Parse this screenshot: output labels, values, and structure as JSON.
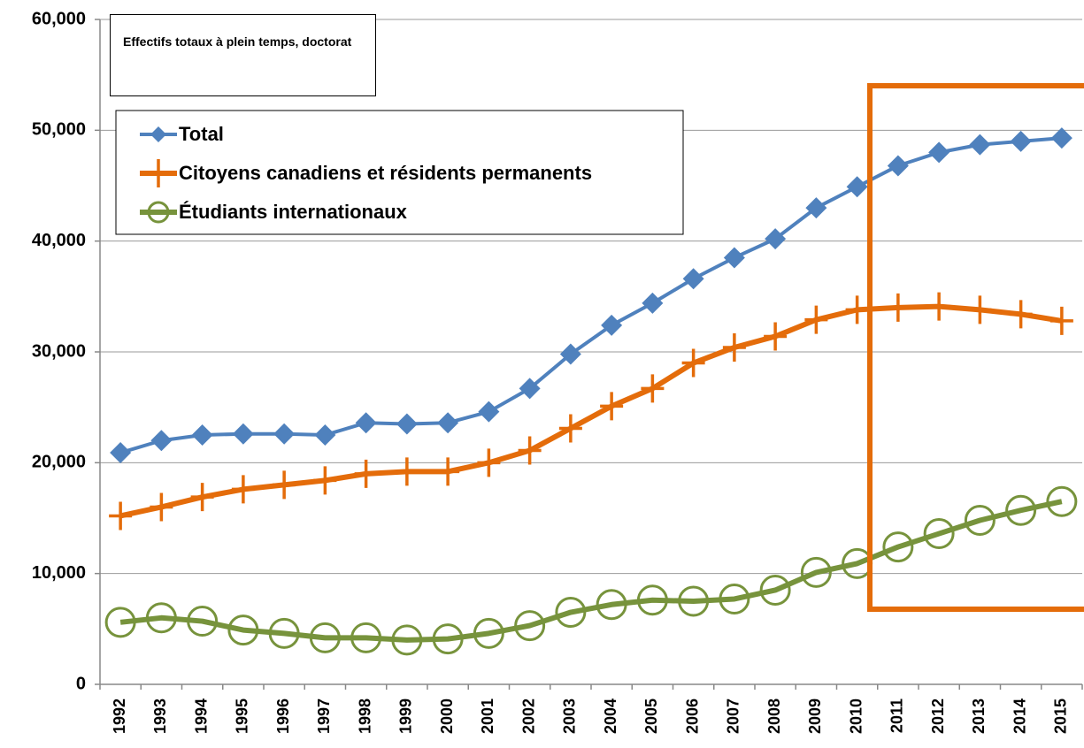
{
  "chart_data": {
    "type": "line",
    "annotation": "Effectifs totaux à plein temps, doctorat",
    "categories": [
      "1992",
      "1993",
      "1994",
      "1995",
      "1996",
      "1997",
      "1998",
      "1999",
      "2000",
      "2001",
      "2002",
      "2003",
      "2004",
      "2005",
      "2006",
      "2007",
      "2008",
      "2009",
      "2010",
      "2011",
      "2012",
      "2013",
      "2014",
      "2015"
    ],
    "series": [
      {
        "name": "Total",
        "color": "#4f81bd",
        "marker": "diamond",
        "values": [
          20900,
          22000,
          22500,
          22600,
          22600,
          22500,
          23600,
          23500,
          23600,
          24600,
          26700,
          29800,
          32400,
          34400,
          36600,
          38500,
          40200,
          43000,
          44900,
          46800,
          48000,
          48700,
          49000,
          49300
        ]
      },
      {
        "name": "Citoyens canadiens et résidents permanents",
        "color": "#e46c0a",
        "marker": "plus",
        "values": [
          15200,
          16000,
          16900,
          17600,
          18000,
          18400,
          19000,
          19200,
          19200,
          20000,
          21100,
          23100,
          25100,
          26700,
          29000,
          30400,
          31400,
          32900,
          33800,
          34000,
          34100,
          33800,
          33400,
          32800
        ]
      },
      {
        "name": "Étudiants internationaux",
        "color": "#77933c",
        "marker": "circle",
        "values": [
          5600,
          6000,
          5700,
          4900,
          4600,
          4200,
          4200,
          4000,
          4100,
          4600,
          5300,
          6500,
          7200,
          7600,
          7500,
          7700,
          8500,
          10100,
          10900,
          12400,
          13600,
          14800,
          15700,
          16500
        ]
      }
    ],
    "ylim": [
      0,
      60000
    ],
    "yticks": [
      0,
      {
        "value": 10000,
        "label": "10,000"
      },
      {
        "value": 20000,
        "label": "20,000"
      },
      {
        "value": 30000,
        "label": "30,000"
      },
      {
        "value": 40000,
        "label": "40,000"
      },
      {
        "value": 50000,
        "label": "50,000"
      },
      {
        "value": 60000,
        "label": "60,000"
      }
    ],
    "grid": true
  }
}
